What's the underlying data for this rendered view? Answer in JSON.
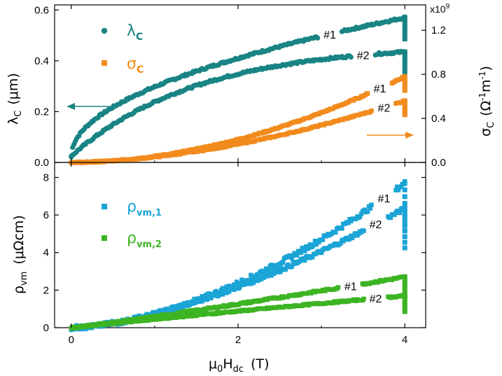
{
  "chart_data": [
    {
      "type": "scatter",
      "panel": "top",
      "xlim": [
        -0.2,
        4.25
      ],
      "ylim": [
        0,
        0.62
      ],
      "y2lim": [
        0,
        1.43
      ],
      "y2_scale_label": "x10",
      "y2_scale_exp": "9",
      "xticks": [
        "0",
        "2",
        "4"
      ],
      "yticks": [
        "0.0",
        "0.2",
        "0.4",
        "0.6"
      ],
      "y2ticks": [
        "0.0",
        "0.4",
        "0.8",
        "1.2"
      ],
      "ylabel": {
        "base": "λ",
        "sub": "C",
        "unit": "(μm)"
      },
      "y2label": {
        "base": "σ",
        "sub": "C",
        "unit_prefix": "(Ω",
        "e1": "-1",
        "mid": "m",
        "e2": "-1",
        "close": ")"
      },
      "legend": [
        {
          "symbol": "λ",
          "sub": "C",
          "color": "#1a8484",
          "marker": "circle"
        },
        {
          "symbol": "σ",
          "sub": "C",
          "color": "#f28b1d",
          "marker": "square"
        }
      ],
      "series": [
        {
          "name": "λC #1",
          "axis": "left",
          "color": "#1a8484",
          "model": "pow",
          "start": 0.025,
          "end": 0.57,
          "exponent": 0.5,
          "noise": 0.004,
          "label": "#1",
          "label_x": 3.1
        },
        {
          "name": "λC #2",
          "axis": "left",
          "color": "#1a8484",
          "model": "sat",
          "start": 0.025,
          "end": 0.435,
          "k": 0.38,
          "noise": 0.004,
          "label": "#2",
          "label_x": 3.5
        },
        {
          "name": "σC #1",
          "axis": "right",
          "color": "#f28b1d",
          "model": "pow",
          "start": 0,
          "end": 0.78,
          "exponent": 1.9,
          "noise": 0.006,
          "label": "#1",
          "label_x": 3.7
        },
        {
          "name": "σC #2",
          "axis": "right",
          "color": "#f28b1d",
          "model": "pow",
          "start": 0,
          "end": 0.56,
          "exponent": 1.75,
          "noise": 0.006,
          "label": "#2",
          "label_x": 3.75
        }
      ]
    },
    {
      "type": "scatter",
      "panel": "bottom",
      "xlim": [
        -0.2,
        4.25
      ],
      "ylim": [
        0,
        8.8
      ],
      "xticks": [
        "0",
        "2",
        "4"
      ],
      "yticks": [
        "0",
        "2",
        "4",
        "6",
        "8"
      ],
      "xlabel": {
        "base": "μ",
        "sub0": "0",
        "mid": "H",
        "sub1": "dc",
        "unit": "(T)"
      },
      "ylabel": {
        "base": "ρ",
        "sub": "vm",
        "unit": "(μΩcm)"
      },
      "legend": [
        {
          "symbol": "ρ",
          "sub": "vm,1",
          "color": "#1ba4d6",
          "marker": "square"
        },
        {
          "symbol": "ρ",
          "sub": "vm,2",
          "color": "#3db423",
          "marker": "square"
        }
      ],
      "series": [
        {
          "name": "ρvm,1 #1",
          "color": "#1ba4d6",
          "model": "pow",
          "start": 0,
          "end": 7.7,
          "exponent": 1.7,
          "noise": 0.12,
          "label": "#1",
          "label_x": 3.75
        },
        {
          "name": "ρvm,1 #2",
          "color": "#1ba4d6",
          "model": "pow",
          "start": 0,
          "end": 6.35,
          "exponent": 1.55,
          "noise": 0.1,
          "label": "#2",
          "label_x": 3.65
        },
        {
          "name": "ρvm,2 #1",
          "color": "#3db423",
          "model": "pow",
          "start": 0,
          "end": 2.7,
          "exponent": 1.1,
          "noise": 0.05,
          "label": "#1",
          "label_x": 3.35
        },
        {
          "name": "ρvm,2 #2",
          "color": "#3db423",
          "model": "pow",
          "start": 0,
          "end": 1.7,
          "exponent": 0.95,
          "noise": 0.04,
          "label": "#2",
          "label_x": 3.65
        }
      ]
    }
  ]
}
